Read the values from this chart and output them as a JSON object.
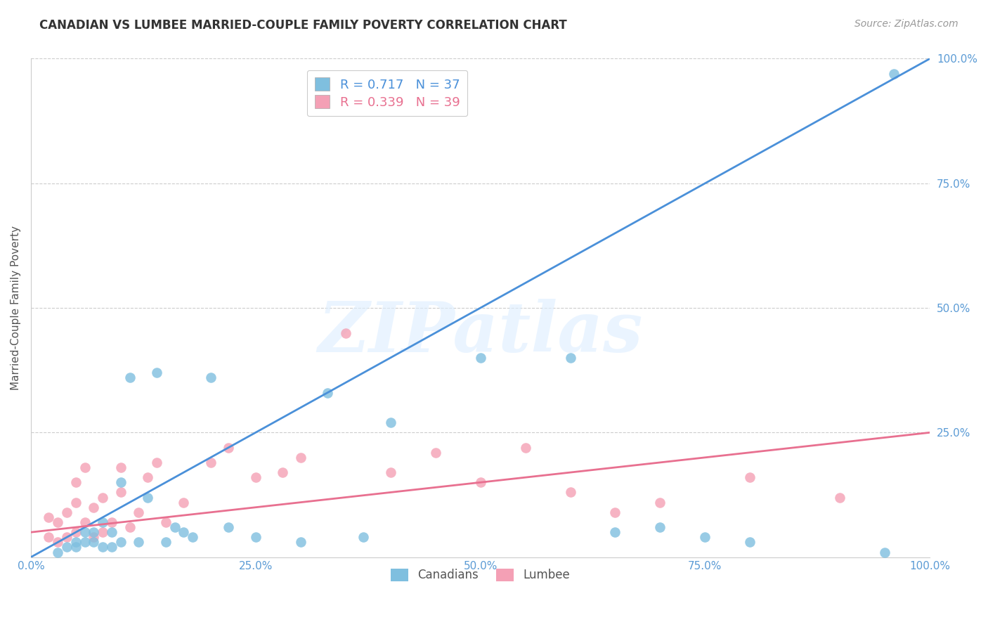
{
  "title": "CANADIAN VS LUMBEE MARRIED-COUPLE FAMILY POVERTY CORRELATION CHART",
  "source": "Source: ZipAtlas.com",
  "ylabel": "Married-Couple Family Poverty",
  "xlim": [
    0,
    100
  ],
  "ylim": [
    0,
    100
  ],
  "xtick_labels": [
    "0.0%",
    "25.0%",
    "50.0%",
    "75.0%",
    "100.0%"
  ],
  "xtick_vals": [
    0,
    25,
    50,
    75,
    100
  ],
  "ytick_labels": [
    "25.0%",
    "50.0%",
    "75.0%",
    "100.0%"
  ],
  "ytick_vals": [
    25,
    50,
    75,
    100
  ],
  "canadian_R": 0.717,
  "canadian_N": 37,
  "lumbee_R": 0.339,
  "lumbee_N": 39,
  "canadian_color": "#7fbfdf",
  "lumbee_color": "#f4a0b5",
  "canadian_line_color": "#4a90d9",
  "lumbee_line_color": "#e87090",
  "watermark_text": "ZIPatlas",
  "background_color": "#ffffff",
  "canadian_line_x0": 0,
  "canadian_line_y0": 0,
  "canadian_line_x1": 100,
  "canadian_line_y1": 100,
  "lumbee_line_x0": 0,
  "lumbee_line_y0": 5,
  "lumbee_line_x1": 100,
  "lumbee_line_y1": 25,
  "canadian_x": [
    3,
    4,
    5,
    5,
    6,
    6,
    7,
    7,
    8,
    8,
    9,
    9,
    10,
    10,
    11,
    12,
    13,
    14,
    15,
    16,
    17,
    18,
    20,
    22,
    25,
    30,
    33,
    37,
    40,
    50,
    60,
    65,
    70,
    75,
    80,
    95,
    96
  ],
  "canadian_y": [
    1,
    2,
    2,
    3,
    3,
    5,
    3,
    5,
    2,
    7,
    2,
    5,
    3,
    15,
    36,
    3,
    12,
    37,
    3,
    6,
    5,
    4,
    36,
    6,
    4,
    3,
    33,
    4,
    27,
    40,
    40,
    5,
    6,
    4,
    3,
    1,
    97
  ],
  "lumbee_x": [
    2,
    2,
    3,
    3,
    4,
    4,
    5,
    5,
    5,
    6,
    6,
    7,
    7,
    8,
    8,
    9,
    10,
    10,
    11,
    12,
    13,
    14,
    15,
    17,
    20,
    22,
    25,
    28,
    30,
    35,
    40,
    45,
    50,
    55,
    60,
    65,
    70,
    80,
    90
  ],
  "lumbee_y": [
    4,
    8,
    3,
    7,
    4,
    9,
    5,
    11,
    15,
    7,
    18,
    4,
    10,
    5,
    12,
    7,
    13,
    18,
    6,
    9,
    16,
    19,
    7,
    11,
    19,
    22,
    16,
    17,
    20,
    45,
    17,
    21,
    15,
    22,
    13,
    9,
    11,
    16,
    12
  ]
}
